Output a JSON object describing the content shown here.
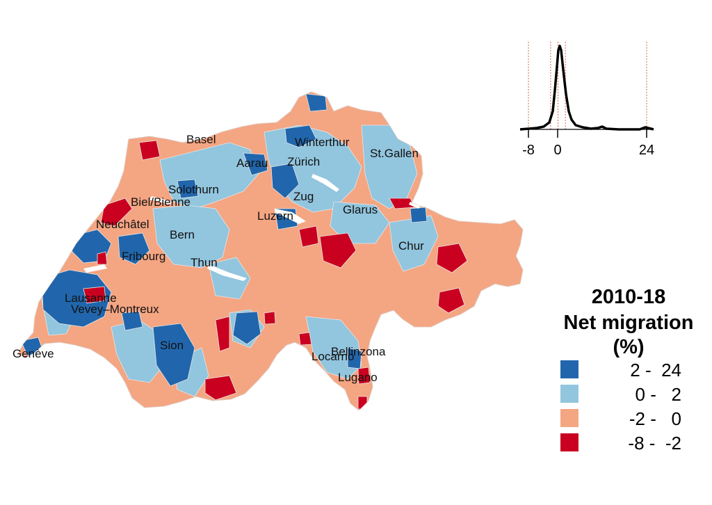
{
  "map": {
    "cities": [
      {
        "name": "Basel"
      },
      {
        "name": "Winterthur"
      },
      {
        "name": "St.Gallen"
      },
      {
        "name": "Aarau"
      },
      {
        "name": "Zürich"
      },
      {
        "name": "Solothurn"
      },
      {
        "name": "Biel/Bienne"
      },
      {
        "name": "Zug"
      },
      {
        "name": "Neuchâtel"
      },
      {
        "name": "Luzern"
      },
      {
        "name": "Glarus"
      },
      {
        "name": "Bern"
      },
      {
        "name": "Chur"
      },
      {
        "name": "Fribourg"
      },
      {
        "name": "Thun"
      },
      {
        "name": "Lausanne"
      },
      {
        "name": "Vevey–Montreux"
      },
      {
        "name": "Sion"
      },
      {
        "name": "Bellinzona"
      },
      {
        "name": "Locarno"
      },
      {
        "name": "Genève"
      },
      {
        "name": "Lugano"
      }
    ]
  },
  "legend": {
    "title_line1": "2010-18",
    "title_line2": "Net migration",
    "title_line3": "(%)",
    "classes": [
      {
        "label": "2 -  24",
        "color": "#2166ac"
      },
      {
        "label": "0 -   2",
        "color": "#92c5de"
      },
      {
        "label": "-2 -   0",
        "color": "#f4a582"
      },
      {
        "label": "-8 -  -2",
        "color": "#ca0020"
      }
    ]
  },
  "density_inset": {
    "tick_labels": [
      "-8",
      "0",
      "24"
    ],
    "reference_lines_x": [
      -8,
      -2,
      0,
      2,
      24
    ],
    "line_color": "#000000",
    "reference_line_color": "#d6604d"
  }
}
